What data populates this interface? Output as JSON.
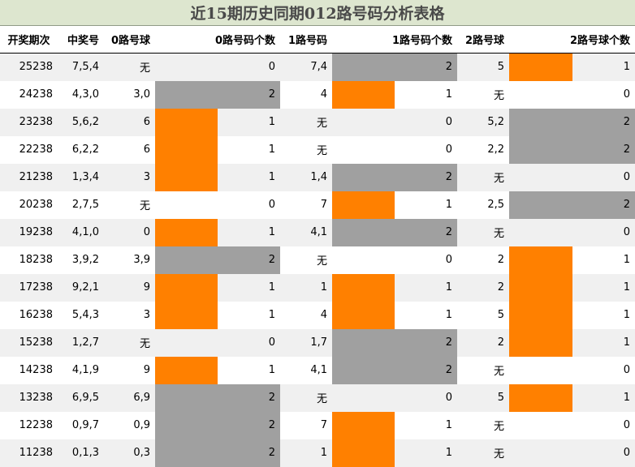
{
  "title": "近15期历史同期012路号码分析表格",
  "colors": {
    "orange": "#ff8000",
    "gray": "#a0a0a0"
  },
  "headers": [
    "开奖期次",
    "中奖号",
    "0路号球",
    "0路号码个数",
    "1路号码",
    "1路号码个数",
    "2路号球",
    "2路号球个数"
  ],
  "rows": [
    {
      "issue": "25238",
      "numbers": "7,5,4",
      "r0": "无",
      "c0": 0,
      "r1": "7,4",
      "c1": 2,
      "r2": "5",
      "c2": 1
    },
    {
      "issue": "24238",
      "numbers": "4,3,0",
      "r0": "3,0",
      "c0": 2,
      "r1": "4",
      "c1": 1,
      "r2": "无",
      "c2": 0
    },
    {
      "issue": "23238",
      "numbers": "5,6,2",
      "r0": "6",
      "c0": 1,
      "r1": "无",
      "c1": 0,
      "r2": "5,2",
      "c2": 2
    },
    {
      "issue": "22238",
      "numbers": "6,2,2",
      "r0": "6",
      "c0": 1,
      "r1": "无",
      "c1": 0,
      "r2": "2,2",
      "c2": 2
    },
    {
      "issue": "21238",
      "numbers": "1,3,4",
      "r0": "3",
      "c0": 1,
      "r1": "1,4",
      "c1": 2,
      "r2": "无",
      "c2": 0
    },
    {
      "issue": "20238",
      "numbers": "2,7,5",
      "r0": "无",
      "c0": 0,
      "r1": "7",
      "c1": 1,
      "r2": "2,5",
      "c2": 2
    },
    {
      "issue": "19238",
      "numbers": "4,1,0",
      "r0": "0",
      "c0": 1,
      "r1": "4,1",
      "c1": 2,
      "r2": "无",
      "c2": 0
    },
    {
      "issue": "18238",
      "numbers": "3,9,2",
      "r0": "3,9",
      "c0": 2,
      "r1": "无",
      "c1": 0,
      "r2": "2",
      "c2": 1
    },
    {
      "issue": "17238",
      "numbers": "9,2,1",
      "r0": "9",
      "c0": 1,
      "r1": "1",
      "c1": 1,
      "r2": "2",
      "c2": 1
    },
    {
      "issue": "16238",
      "numbers": "5,4,3",
      "r0": "3",
      "c0": 1,
      "r1": "4",
      "c1": 1,
      "r2": "5",
      "c2": 1
    },
    {
      "issue": "15238",
      "numbers": "1,2,7",
      "r0": "无",
      "c0": 0,
      "r1": "1,7",
      "c1": 2,
      "r2": "2",
      "c2": 1
    },
    {
      "issue": "14238",
      "numbers": "4,1,9",
      "r0": "9",
      "c0": 1,
      "r1": "4,1",
      "c1": 2,
      "r2": "无",
      "c2": 0
    },
    {
      "issue": "13238",
      "numbers": "6,9,5",
      "r0": "6,9",
      "c0": 2,
      "r1": "无",
      "c1": 0,
      "r2": "5",
      "c2": 1
    },
    {
      "issue": "12238",
      "numbers": "0,9,7",
      "r0": "0,9",
      "c0": 2,
      "r1": "7",
      "c1": 1,
      "r2": "无",
      "c2": 0
    },
    {
      "issue": "11238",
      "numbers": "0,1,3",
      "r0": "0,3",
      "c0": 2,
      "r1": "1",
      "c1": 1,
      "r2": "无",
      "c2": 0
    }
  ]
}
